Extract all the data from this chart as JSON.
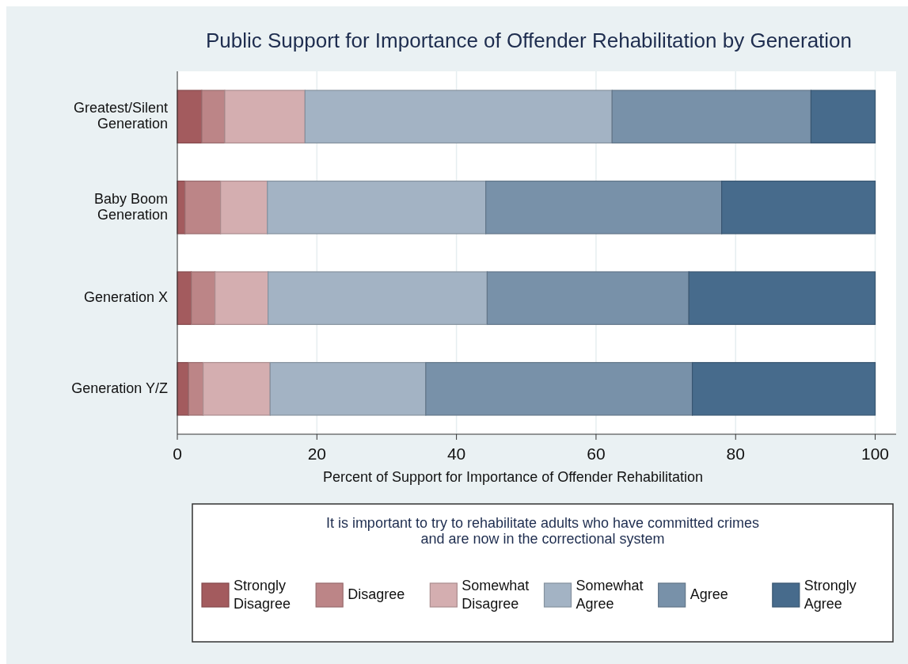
{
  "chart_data": {
    "type": "bar",
    "orientation": "horizontal",
    "stacked": true,
    "title": "Public Support for Importance of Offender Rehabilitation by Generation",
    "xlabel": "Percent of Support for Importance of Offender Rehabilitation",
    "legend_title": "It is important to try to rehabilitate adults who have committed crimes\nand are now in the correctional system",
    "categories": [
      "Greatest/Silent\nGeneration",
      "Baby Boom\nGeneration",
      "Generation X",
      "Generation Y/Z"
    ],
    "series": [
      {
        "name": "Strongly\nDisagree",
        "color": "#a35b5e",
        "values": [
          3.5,
          1.1,
          2.0,
          1.6
        ]
      },
      {
        "name": "Disagree",
        "color": "#bc8587",
        "values": [
          3.3,
          5.1,
          3.4,
          2.1
        ]
      },
      {
        "name": "Somewhat\nDisagree",
        "color": "#d4aeb0",
        "values": [
          11.5,
          6.7,
          7.6,
          9.6
        ]
      },
      {
        "name": "Somewhat\nAgree",
        "color": "#a3b3c4",
        "values": [
          44.0,
          31.3,
          31.4,
          22.3
        ]
      },
      {
        "name": "Agree",
        "color": "#7891a9",
        "values": [
          28.5,
          33.8,
          28.9,
          38.2
        ]
      },
      {
        "name": "Strongly\nAgree",
        "color": "#476b8c",
        "values": [
          9.2,
          22.0,
          26.7,
          26.2
        ]
      }
    ],
    "xlim": [
      0,
      103
    ],
    "xticks": [
      0,
      20,
      40,
      60,
      80,
      100
    ],
    "grid": "x",
    "legend": "bottom"
  }
}
